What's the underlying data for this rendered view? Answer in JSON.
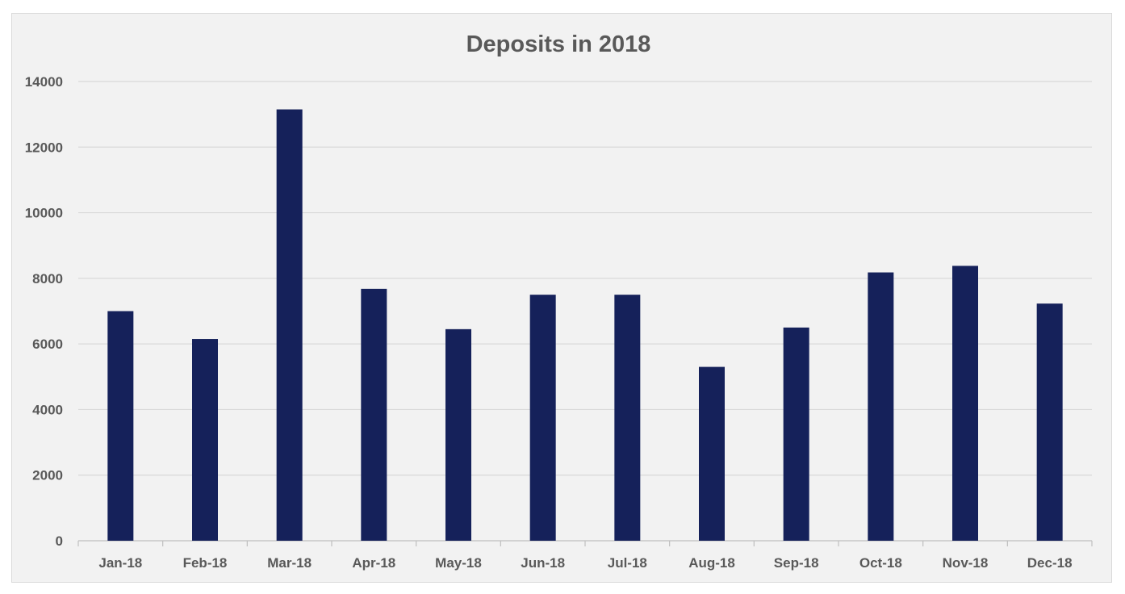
{
  "chart_data": {
    "type": "bar",
    "title": "Deposits in 2018",
    "xlabel": "",
    "ylabel": "",
    "categories": [
      "Jan-18",
      "Feb-18",
      "Mar-18",
      "Apr-18",
      "May-18",
      "Jun-18",
      "Jul-18",
      "Aug-18",
      "Sep-18",
      "Oct-18",
      "Nov-18",
      "Dec-18"
    ],
    "values": [
      7000,
      6150,
      13150,
      7680,
      6450,
      7500,
      7500,
      5300,
      6500,
      8180,
      8380,
      7230
    ],
    "ylim": [
      0,
      14000
    ],
    "yticks": [
      "0",
      "2000",
      "4000",
      "6000",
      "8000",
      "10000",
      "12000",
      "14000"
    ],
    "grid": true,
    "legend": "none",
    "bar_color": "#15215a"
  }
}
